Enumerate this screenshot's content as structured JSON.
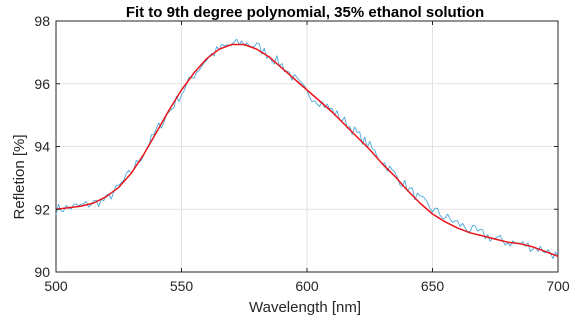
{
  "chart_data": {
    "type": "line",
    "title": "Fit to 9th degree polynomial, 35% ethanol solution",
    "xlabel": "Wavelength [nm]",
    "ylabel": "Refletion [%]",
    "xlim": [
      500,
      700
    ],
    "ylim": [
      90,
      98
    ],
    "xticks": [
      500,
      550,
      600,
      650,
      700
    ],
    "yticks": [
      90,
      92,
      94,
      96,
      98
    ],
    "grid": true,
    "legend": "none",
    "series": [
      {
        "kind": "measured",
        "color": "#4aa8d8",
        "x": [
          500,
          510,
          520,
          525,
          530,
          535,
          540,
          545,
          550,
          555,
          560,
          565,
          570,
          575,
          580,
          585,
          590,
          595,
          600,
          605,
          610,
          615,
          620,
          625,
          630,
          635,
          640,
          645,
          650,
          655,
          660,
          665,
          670,
          675,
          680,
          685,
          690,
          695,
          700
        ],
        "y": [
          92.0,
          92.1,
          92.3,
          92.7,
          93.2,
          93.8,
          94.5,
          95.1,
          95.7,
          96.3,
          96.8,
          97.1,
          97.25,
          97.3,
          97.2,
          96.9,
          96.6,
          96.15,
          95.7,
          95.45,
          95.15,
          94.8,
          94.4,
          94.0,
          93.55,
          93.1,
          92.7,
          92.3,
          92.0,
          91.75,
          91.55,
          91.35,
          91.2,
          91.05,
          90.95,
          90.9,
          90.8,
          90.7,
          90.5
        ]
      },
      {
        "kind": "fit",
        "color": "#e8161b",
        "x": [
          500,
          505,
          510,
          515,
          520,
          525,
          530,
          535,
          540,
          545,
          550,
          555,
          560,
          565,
          570,
          575,
          580,
          585,
          590,
          595,
          600,
          605,
          610,
          615,
          620,
          625,
          630,
          635,
          640,
          645,
          650,
          655,
          660,
          665,
          670,
          675,
          680,
          685,
          690,
          695,
          700
        ],
        "y": [
          92.0,
          92.05,
          92.1,
          92.2,
          92.4,
          92.7,
          93.15,
          93.75,
          94.45,
          95.15,
          95.8,
          96.35,
          96.8,
          97.1,
          97.25,
          97.25,
          97.1,
          96.85,
          96.5,
          96.15,
          95.8,
          95.45,
          95.1,
          94.7,
          94.3,
          93.9,
          93.45,
          93.05,
          92.6,
          92.2,
          91.85,
          91.6,
          91.4,
          91.25,
          91.15,
          91.05,
          90.95,
          90.9,
          90.8,
          90.65,
          90.5
        ]
      }
    ]
  }
}
